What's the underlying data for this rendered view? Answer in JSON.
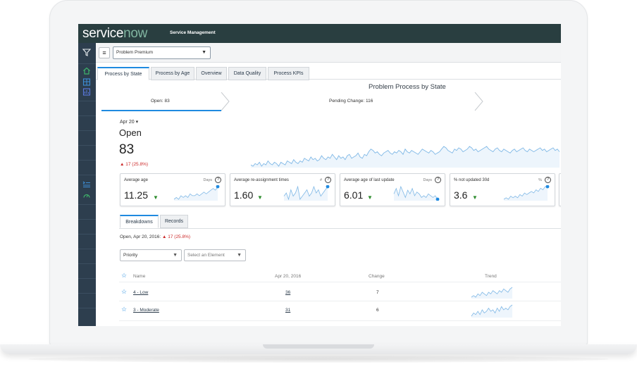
{
  "header": {
    "logo_main": "service",
    "logo_accent": "now",
    "app_name": "Service Management"
  },
  "leftnav": {
    "icons": [
      "filter-icon",
      "home-icon",
      "dashboard-icon",
      "list-icon",
      "queue-icon",
      "gauge-icon"
    ]
  },
  "toolbar": {
    "dashboard_value": "Problem Premium"
  },
  "tabs": [
    "Process by State",
    "Process by Age",
    "Overview",
    "Data Quality",
    "Process KPIs"
  ],
  "section_title": "Problem Process by State",
  "states": [
    {
      "label": "Open: 83"
    },
    {
      "label": "Pending Change: 116"
    }
  ],
  "summary": {
    "date": "Apr 20",
    "state": "Open",
    "count": "83",
    "delta": "▲ 17 (25.8%)",
    "trend": [
      26,
      25,
      27,
      26,
      28,
      25,
      27,
      26,
      29,
      27,
      26,
      28,
      27,
      25,
      28,
      27,
      26,
      29,
      28,
      27,
      30,
      28,
      27,
      29,
      28,
      31,
      30,
      29,
      32,
      30,
      31,
      29,
      30,
      33,
      31,
      30,
      32,
      31,
      34,
      32,
      30,
      33,
      31,
      32,
      30,
      33,
      34,
      31,
      32,
      33,
      35,
      32,
      31,
      34,
      33,
      36,
      38,
      37,
      35,
      36,
      34,
      33,
      35,
      36,
      37,
      35,
      34,
      36,
      35,
      37,
      36,
      34,
      38,
      36,
      35,
      37,
      36,
      35,
      34,
      36,
      38,
      37,
      36,
      35,
      37,
      36,
      34,
      35,
      36,
      38,
      40,
      39,
      37,
      36,
      35,
      38,
      37,
      39,
      38,
      36,
      37,
      38,
      40,
      39,
      37,
      38,
      36,
      37,
      38,
      39,
      40,
      38,
      37,
      36,
      38,
      39,
      37,
      36,
      38,
      37,
      36,
      35,
      37,
      38,
      36,
      37,
      38,
      39,
      37,
      36,
      38,
      37,
      36,
      37,
      38,
      39,
      37,
      38,
      36,
      37,
      38,
      39,
      37,
      38,
      36
    ]
  },
  "kpis": [
    {
      "title": "Average age",
      "unit": "Days",
      "value": "11.25",
      "trend": [
        3,
        4,
        3,
        5,
        4,
        5,
        4,
        6,
        5,
        5,
        6,
        5,
        6,
        7,
        6,
        7,
        8,
        9,
        8,
        10
      ]
    },
    {
      "title": "Average re-assignment times",
      "unit": "#",
      "value": "1.60",
      "trend": [
        6,
        7,
        5,
        8,
        6,
        7,
        9,
        5,
        6,
        7,
        8,
        6,
        7,
        9,
        7,
        8,
        6,
        7,
        8,
        9
      ]
    },
    {
      "title": "Average age of last update",
      "unit": "Days",
      "value": "6.01",
      "trend": [
        5,
        8,
        4,
        9,
        6,
        3,
        7,
        5,
        8,
        4,
        6,
        5,
        3,
        4,
        3,
        5,
        4,
        3,
        4,
        2
      ]
    },
    {
      "title": "% not updated 30d",
      "unit": "%",
      "value": "3.6",
      "trend": [
        1,
        2,
        1,
        3,
        2,
        3,
        2,
        4,
        3,
        5,
        4,
        5,
        6,
        5,
        7,
        6,
        8,
        7,
        9,
        9
      ]
    }
  ],
  "subtabs": [
    "Breakdowns",
    "Records"
  ],
  "breakdown": {
    "info_prefix": "Open, Apr 20, 2016:",
    "info_delta": "▲ 17 (25.8%)",
    "breakdown_select": "Priority",
    "element_placeholder": "Select an Element"
  },
  "table": {
    "columns": [
      "Name",
      "Apr 20, 2016",
      "Change",
      "Trend"
    ],
    "rows": [
      {
        "name": "4 - Low",
        "value": "36",
        "change": "7",
        "trend": [
          3,
          4,
          3,
          5,
          4,
          6,
          5,
          4,
          6,
          5,
          7,
          6,
          5,
          7,
          6,
          8,
          7,
          6,
          8,
          9
        ]
      },
      {
        "name": "3 - Moderate",
        "value": "31",
        "change": "6",
        "trend": [
          2,
          4,
          3,
          5,
          3,
          6,
          4,
          5,
          7,
          5,
          6,
          4,
          7,
          5,
          8,
          6,
          7,
          6,
          8,
          9
        ]
      }
    ]
  },
  "colors": {
    "header_bg": "#293e40",
    "nav_bg": "#2d3e4e",
    "accent": "#1f8ae0",
    "increase_red": "#cc2a2a",
    "decrease_green": "#2d8c2d"
  }
}
